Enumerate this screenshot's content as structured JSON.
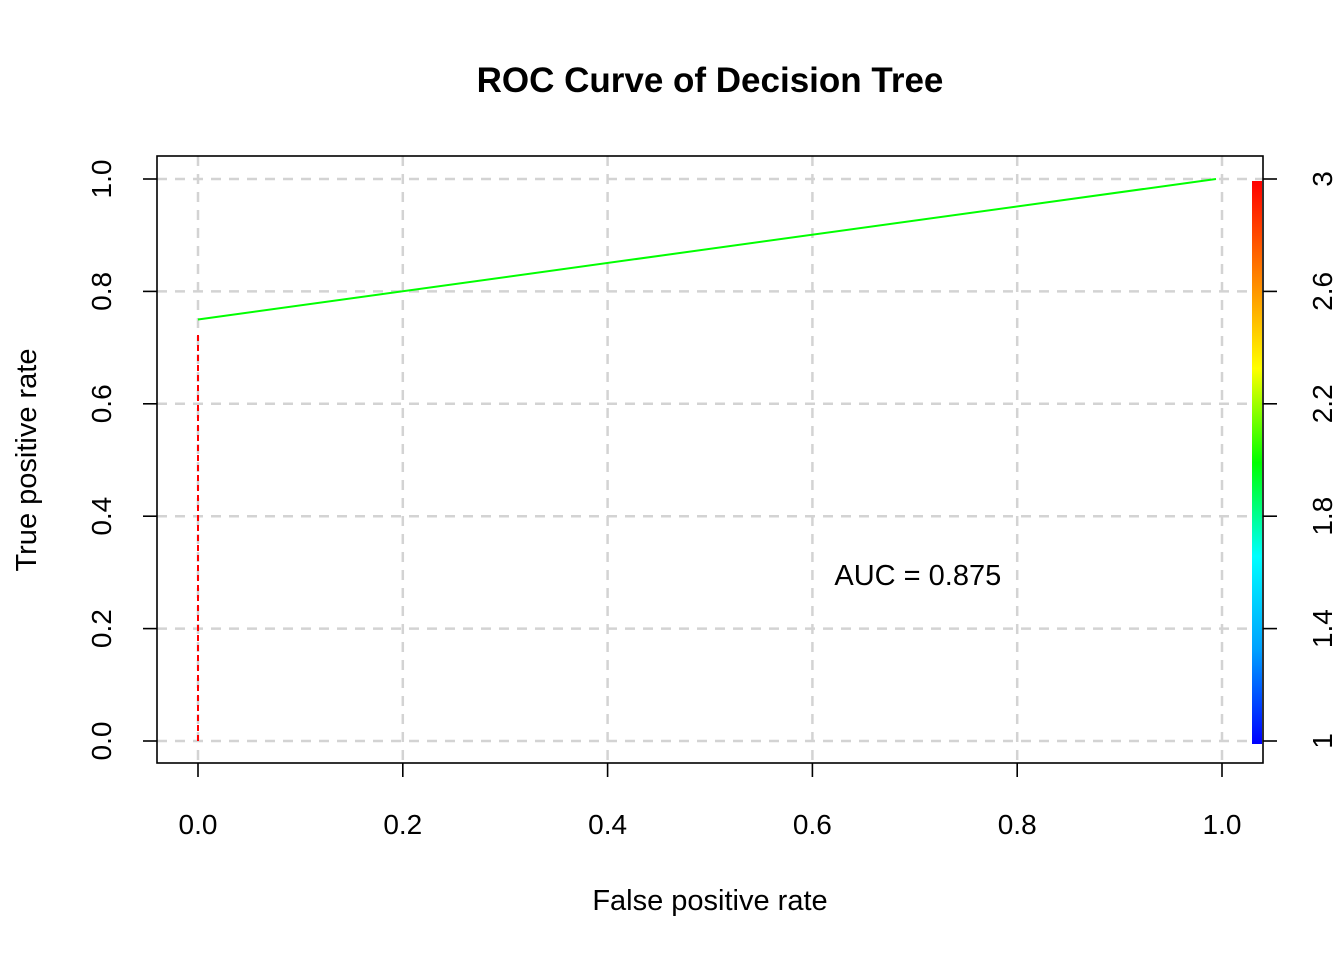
{
  "chart_data": {
    "type": "line",
    "title": "ROC Curve of Decision Tree",
    "xlabel": "False positive rate",
    "ylabel": "True positive rate",
    "xlim": [
      0,
      1
    ],
    "ylim": [
      0,
      1
    ],
    "grid": true,
    "x_ticks": [
      "0.0",
      "0.2",
      "0.4",
      "0.6",
      "0.8",
      "1.0"
    ],
    "y_ticks": [
      "0.0",
      "0.2",
      "0.4",
      "0.6",
      "0.8",
      "1.0"
    ],
    "series": [
      {
        "name": "ROC",
        "points": [
          {
            "x": 0.0,
            "y": 0.0,
            "cutoff": 3
          },
          {
            "x": 0.0,
            "y": 0.75,
            "cutoff": 2
          },
          {
            "x": 1.0,
            "y": 1.0,
            "cutoff": 1
          }
        ]
      }
    ],
    "annotation": {
      "text": "AUC = 0.875",
      "x": 0.7,
      "y": 0.295
    },
    "colorbar": {
      "range": [
        1,
        3
      ],
      "ticks": [
        "1",
        "1.4",
        "1.8",
        "2.2",
        "2.6",
        "3"
      ],
      "colors": [
        "#0000ff",
        "#00a0ff",
        "#00ffff",
        "#00ff00",
        "#ffff00",
        "#ff8000",
        "#ff0000"
      ]
    },
    "line_colors": {
      "segment1": "#ff0000",
      "segment2": "#00ff00"
    },
    "grid_color": "#d3d3d3"
  }
}
